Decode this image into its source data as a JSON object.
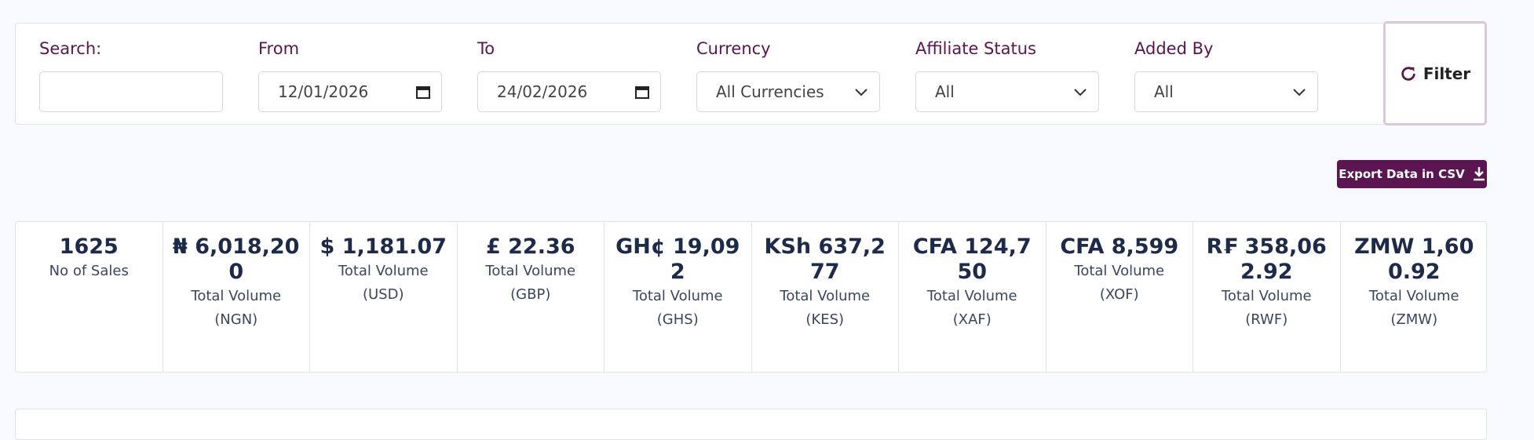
{
  "filters": [
    {
      "label": "Search:",
      "value": ""
    },
    {
      "label": "From",
      "value": "12/01/2026"
    },
    {
      "label": "To",
      "value": "24/02/2026"
    },
    {
      "label": "Currency",
      "value": "All Currencies"
    },
    {
      "label": "Affiliate Status",
      "value": "All"
    },
    {
      "label": "Added By",
      "value": "All"
    }
  ],
  "filter_button": "Filter",
  "export_button": "Export Data in CSV",
  "stats": [
    {
      "value": "1625",
      "label": "No of Sales"
    },
    {
      "value": "₦ 6,018,200",
      "label": "Total Volume (NGN)"
    },
    {
      "value": "$ 1,181.07",
      "label": "Total Volume (USD)"
    },
    {
      "value": "£ 22.36",
      "label": "Total Volume (GBP)"
    },
    {
      "value": "GH¢ 19,092",
      "label": "Total Volume (GHS)"
    },
    {
      "value": "KSh 637,277",
      "label": "Total Volume (KES)"
    },
    {
      "value": "CFA 124,750",
      "label": "Total Volume (XAF)"
    },
    {
      "value": "CFA 8,599",
      "label": "Total Volume (XOF)"
    },
    {
      "value": "R₣ 358,062.92",
      "label": "Total Volume (RWF)"
    },
    {
      "value": "ZMW 1,600.92",
      "label": "Total Volume (ZMW)"
    }
  ]
}
